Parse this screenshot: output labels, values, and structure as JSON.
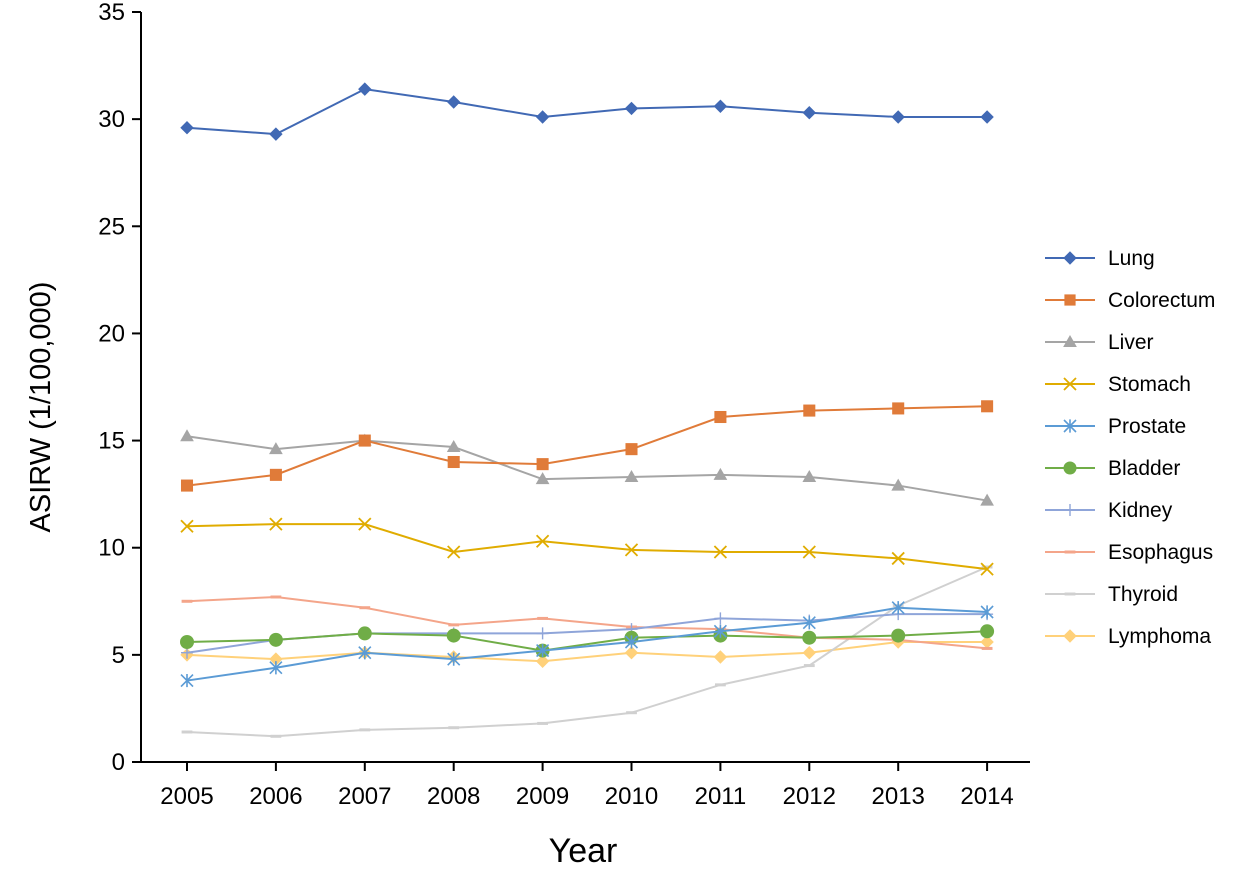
{
  "chart_data": {
    "type": "line",
    "title": "",
    "xlabel": "Year",
    "ylabel": "ASIRW (1/100,000)",
    "x": [
      "2005",
      "2006",
      "2007",
      "2008",
      "2009",
      "2010",
      "2011",
      "2012",
      "2013",
      "2014"
    ],
    "ylim": [
      0,
      35
    ],
    "yticks": [
      0,
      5,
      10,
      15,
      20,
      25,
      30,
      35
    ],
    "grid": false,
    "legend_position": "right",
    "series": [
      {
        "name": "Lung",
        "color": "#4169b4",
        "marker": "diamond",
        "values": [
          29.6,
          29.3,
          31.4,
          30.8,
          30.1,
          30.5,
          30.6,
          30.3,
          30.1,
          30.1
        ]
      },
      {
        "name": "Colorectum",
        "color": "#e07b39",
        "marker": "square",
        "values": [
          12.9,
          13.4,
          15.0,
          14.0,
          13.9,
          14.6,
          16.1,
          16.4,
          16.5,
          16.6
        ]
      },
      {
        "name": "Liver",
        "color": "#a5a5a5",
        "marker": "triangle",
        "values": [
          15.2,
          14.6,
          15.0,
          14.7,
          13.2,
          13.3,
          13.4,
          13.3,
          12.9,
          12.2
        ]
      },
      {
        "name": "Stomach",
        "color": "#e0ac00",
        "marker": "x",
        "values": [
          11.0,
          11.1,
          11.1,
          9.8,
          10.3,
          9.9,
          9.8,
          9.8,
          9.5,
          9.0
        ]
      },
      {
        "name": "Prostate",
        "color": "#5b9bd5",
        "marker": "asterisk",
        "values": [
          3.8,
          4.4,
          5.1,
          4.8,
          5.2,
          5.6,
          6.1,
          6.5,
          7.2,
          7.0
        ]
      },
      {
        "name": "Bladder",
        "color": "#70ad47",
        "marker": "circle",
        "values": [
          5.6,
          5.7,
          6.0,
          5.9,
          5.2,
          5.8,
          5.9,
          5.8,
          5.9,
          6.1
        ]
      },
      {
        "name": "Kidney",
        "color": "#8fa5d9",
        "marker": "plus",
        "values": [
          5.1,
          5.7,
          6.0,
          6.0,
          6.0,
          6.2,
          6.7,
          6.6,
          6.9,
          6.9
        ]
      },
      {
        "name": "Esophagus",
        "color": "#f4a58a",
        "marker": "dash",
        "values": [
          7.5,
          7.7,
          7.2,
          6.4,
          6.7,
          6.3,
          6.2,
          5.8,
          5.7,
          5.3
        ]
      },
      {
        "name": "Thyroid",
        "color": "#d0d0d0",
        "marker": "dash",
        "values": [
          1.4,
          1.2,
          1.5,
          1.6,
          1.8,
          2.3,
          3.6,
          4.5,
          7.3,
          9.1
        ]
      },
      {
        "name": "Lymphoma",
        "color": "#ffd17a",
        "marker": "diamond",
        "values": [
          5.0,
          4.8,
          5.1,
          4.9,
          4.7,
          5.1,
          4.9,
          5.1,
          5.6,
          5.6
        ]
      }
    ]
  }
}
